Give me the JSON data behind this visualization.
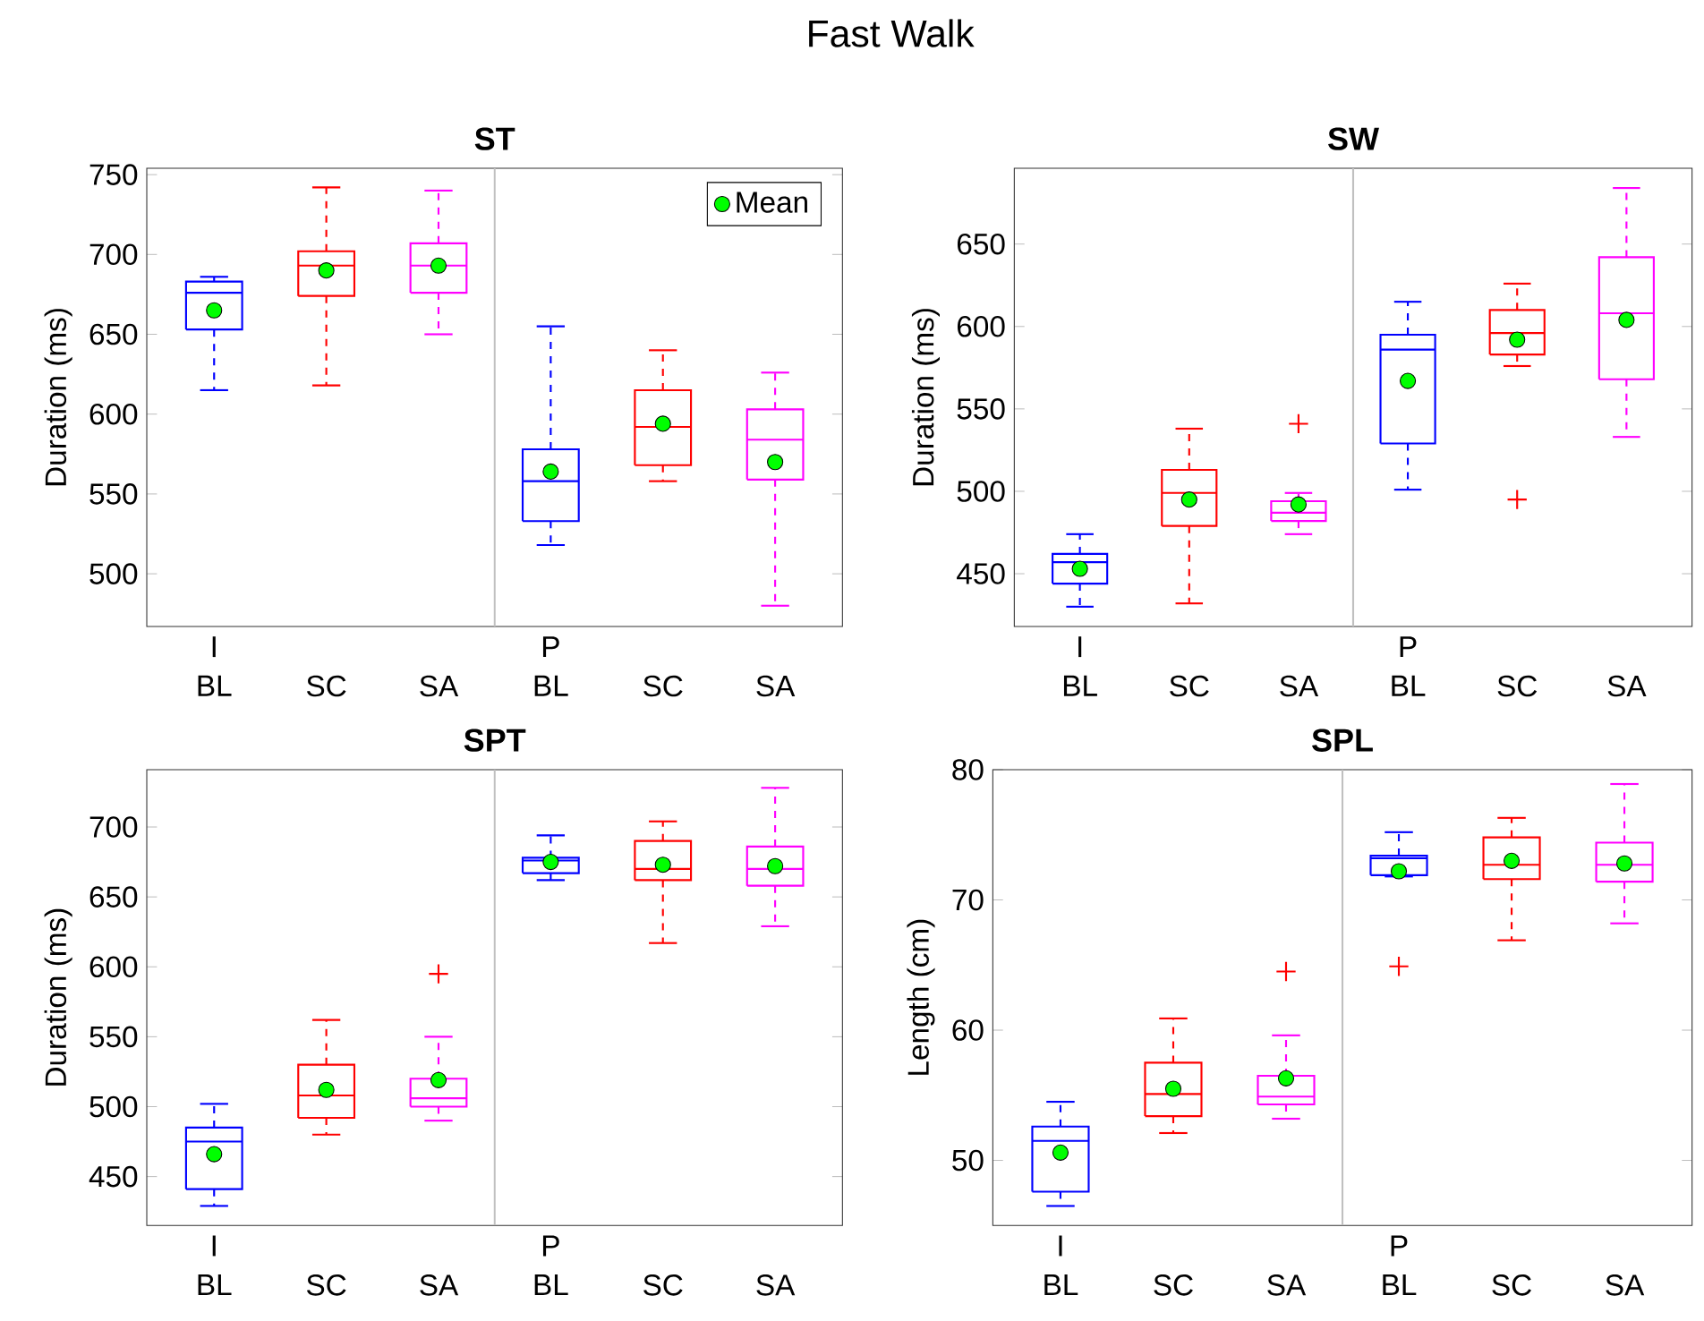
{
  "chart_data": [
    {
      "type": "box",
      "title": "ST",
      "ylabel": "Duration (ms)",
      "categories": [
        "BL",
        "SC",
        "SA",
        "BL",
        "SC",
        "SA"
      ],
      "ylim": [
        467,
        754
      ],
      "yticks": [
        500,
        550,
        600,
        650,
        700,
        750
      ],
      "legend": "top right",
      "series": [
        {
          "type": "box",
          "colors": [
            "#0000ff",
            "#ff0000",
            "#ff00ff",
            "#0000ff",
            "#ff0000",
            "#ff00ff"
          ],
          "boxes": [
            {
              "low": 615,
              "q1": 653,
              "median": 676,
              "q3": 683,
              "high": 686
            },
            {
              "low": 618,
              "q1": 674,
              "median": 693,
              "q3": 702,
              "high": 742
            },
            {
              "low": 650,
              "q1": 676,
              "median": 693,
              "q3": 707,
              "high": 740
            },
            {
              "low": 518,
              "q1": 533,
              "median": 558,
              "q3": 578,
              "high": 655
            },
            {
              "low": 558,
              "q1": 568,
              "median": 592,
              "q3": 615,
              "high": 640
            },
            {
              "low": 480,
              "q1": 559,
              "median": 584,
              "q3": 603,
              "high": 626
            }
          ]
        },
        {
          "type": "scatter",
          "name": "Mean",
          "color": "#00ff00",
          "marker": "circle",
          "values": [
            665,
            690,
            693,
            564,
            594,
            570
          ]
        }
      ],
      "annotations": [
        "Fast Walk",
        "I",
        "P"
      ]
    },
    {
      "type": "box",
      "title": "SW",
      "ylabel": "Duration (ms)",
      "categories": [
        "BL",
        "SC",
        "SA",
        "BL",
        "SC",
        "SA"
      ],
      "ylim": [
        418,
        696
      ],
      "yticks": [
        450,
        500,
        550,
        600,
        650
      ],
      "series": [
        {
          "type": "box",
          "colors": [
            "#0000ff",
            "#ff0000",
            "#ff00ff",
            "#0000ff",
            "#ff0000",
            "#ff00ff"
          ],
          "boxes": [
            {
              "low": 430,
              "q1": 444,
              "median": 457,
              "q3": 462,
              "high": 474
            },
            {
              "low": 432,
              "q1": 479,
              "median": 499,
              "q3": 513,
              "high": 538
            },
            {
              "low": 474,
              "q1": 482,
              "median": 487,
              "q3": 494,
              "high": 499,
              "outliers": [
                541
              ]
            },
            {
              "low": 501,
              "q1": 529,
              "median": 586,
              "q3": 595,
              "high": 615
            },
            {
              "low": 576,
              "q1": 583,
              "median": 596,
              "q3": 610,
              "high": 626,
              "outliers": [
                495
              ]
            },
            {
              "low": 533,
              "q1": 568,
              "median": 608,
              "q3": 642,
              "high": 684
            }
          ]
        },
        {
          "type": "scatter",
          "color": "#00ff00",
          "marker": "circle",
          "values": [
            453,
            495,
            492,
            567,
            592,
            604
          ]
        }
      ],
      "annotations": [
        "I",
        "P"
      ]
    },
    {
      "type": "box",
      "title": "SPT",
      "ylabel": "Duration (ms)",
      "categories": [
        "BL",
        "SC",
        "SA",
        "BL",
        "SC",
        "SA"
      ],
      "ylim": [
        415,
        741
      ],
      "yticks": [
        450,
        500,
        550,
        600,
        650,
        700
      ],
      "series": [
        {
          "type": "box",
          "colors": [
            "#0000ff",
            "#ff0000",
            "#ff00ff",
            "#0000ff",
            "#ff0000",
            "#ff00ff"
          ],
          "boxes": [
            {
              "low": 429,
              "q1": 441,
              "median": 475,
              "q3": 485,
              "high": 502
            },
            {
              "low": 480,
              "q1": 492,
              "median": 508,
              "q3": 530,
              "high": 562
            },
            {
              "low": 490,
              "q1": 500,
              "median": 506,
              "q3": 520,
              "high": 550,
              "outliers": [
                595
              ]
            },
            {
              "low": 662,
              "q1": 667,
              "median": 676,
              "q3": 678,
              "high": 694
            },
            {
              "low": 617,
              "q1": 662,
              "median": 670,
              "q3": 690,
              "high": 704
            },
            {
              "low": 629,
              "q1": 658,
              "median": 670,
              "q3": 686,
              "high": 728
            }
          ]
        },
        {
          "type": "scatter",
          "color": "#00ff00",
          "marker": "circle",
          "values": [
            466,
            512,
            519,
            675,
            673,
            672
          ]
        }
      ],
      "annotations": [
        "I",
        "P"
      ]
    },
    {
      "type": "box",
      "title": "SPL",
      "ylabel": "Length (cm)",
      "categories": [
        "BL",
        "SC",
        "SA",
        "BL",
        "SC",
        "SA"
      ],
      "ylim": [
        45,
        80
      ],
      "yticks": [
        50,
        60,
        70,
        80
      ],
      "series": [
        {
          "type": "box",
          "colors": [
            "#0000ff",
            "#ff0000",
            "#ff00ff",
            "#0000ff",
            "#ff0000",
            "#ff00ff"
          ],
          "boxes": [
            {
              "low": 46.5,
              "q1": 47.6,
              "median": 51.5,
              "q3": 52.6,
              "high": 54.5
            },
            {
              "low": 52.1,
              "q1": 53.4,
              "median": 55.1,
              "q3": 57.5,
              "high": 60.9
            },
            {
              "low": 53.2,
              "q1": 54.3,
              "median": 54.9,
              "q3": 56.5,
              "high": 59.6,
              "outliers": [
                64.5
              ]
            },
            {
              "low": 71.8,
              "q1": 71.9,
              "median": 73.2,
              "q3": 73.4,
              "high": 75.2,
              "outliers": [
                64.9
              ]
            },
            {
              "low": 66.9,
              "q1": 71.6,
              "median": 72.7,
              "q3": 74.8,
              "high": 76.3
            },
            {
              "low": 68.2,
              "q1": 71.4,
              "median": 72.7,
              "q3": 74.4,
              "high": 78.9
            }
          ]
        },
        {
          "type": "scatter",
          "color": "#00ff00",
          "marker": "circle",
          "values": [
            50.6,
            55.5,
            56.3,
            72.2,
            73.0,
            72.8
          ]
        }
      ],
      "annotations": [
        "I",
        "P"
      ]
    }
  ]
}
